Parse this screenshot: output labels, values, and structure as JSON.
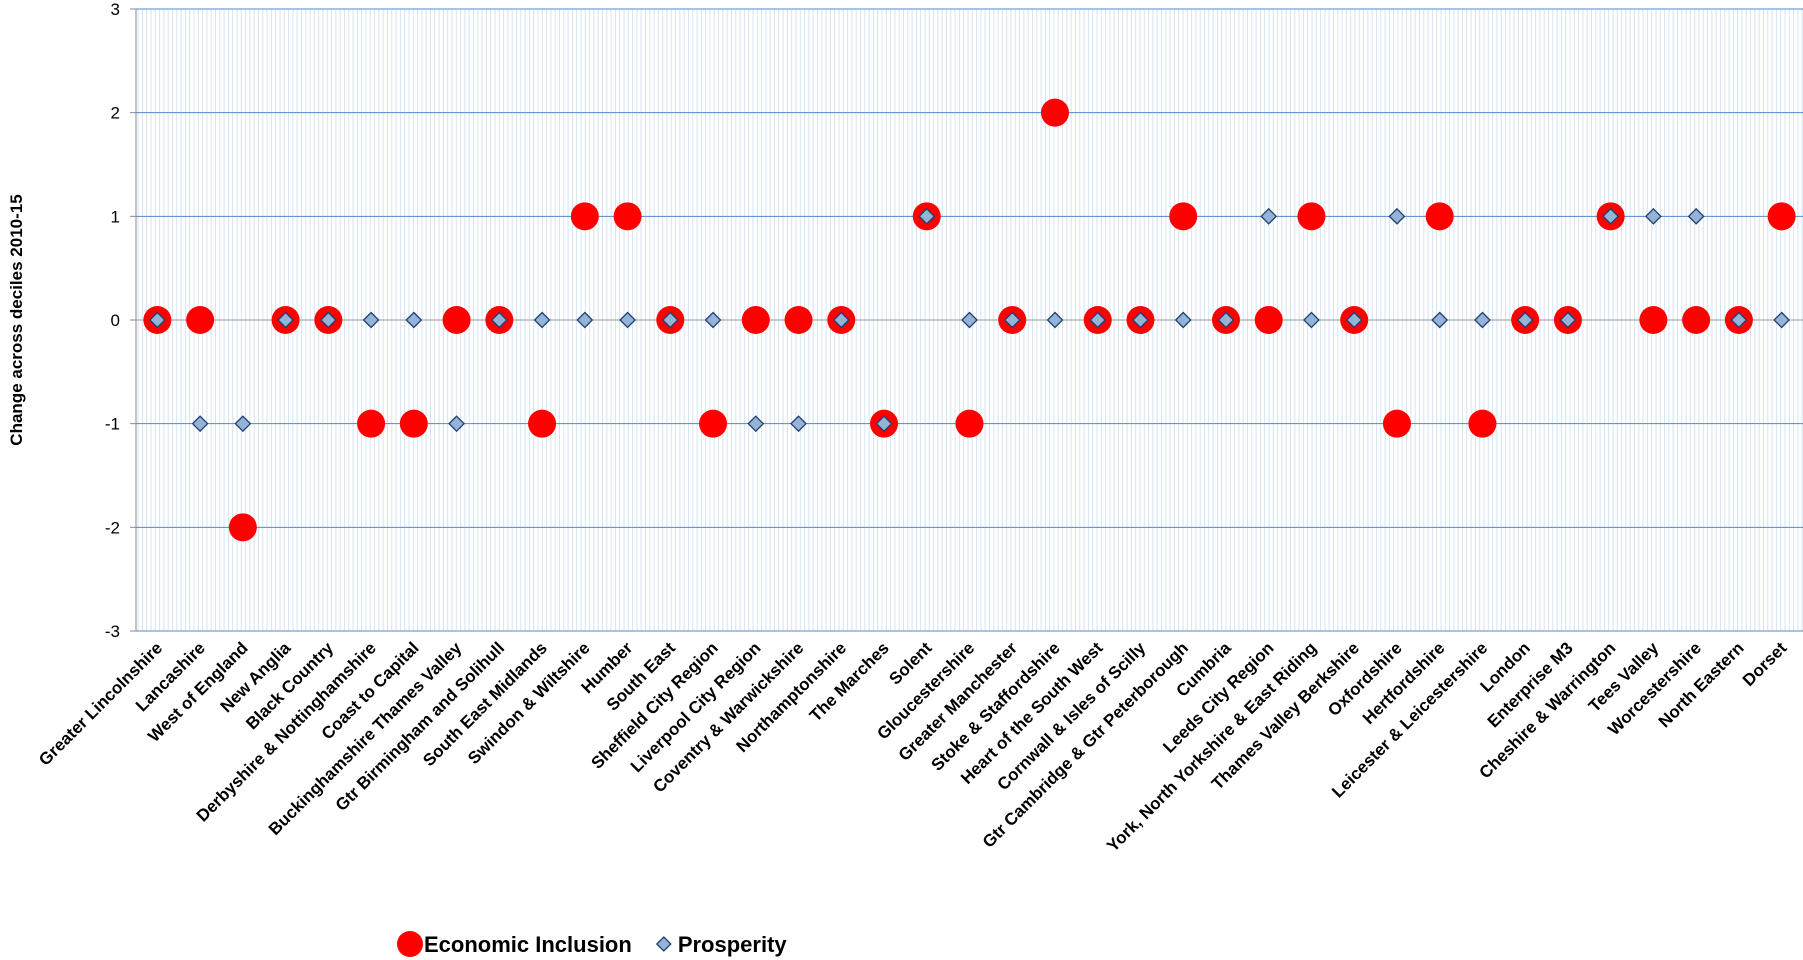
{
  "chart_data": {
    "type": "scatter",
    "y_label": "Change across deciles 2010-15",
    "categories": [
      "Greater Lincolnshire",
      "Lancashire",
      "West of England",
      "New Anglia",
      "Black Country",
      "Derbyshire & Nottinghamshire",
      "Coast to Capital",
      "Buckinghamshire Thames Valley",
      "Gtr Birmingham and Solihull",
      "South East Midlands",
      "Swindon & Wiltshire",
      "Humber",
      "South East",
      "Sheffield City Region",
      "Liverpool City Region",
      "Coventry & Warwickshire",
      "Northamptonshire",
      "The Marches",
      "Solent",
      "Gloucestershire",
      "Greater Manchester",
      "Stoke & Staffordshire",
      "Heart of the South West",
      "Cornwall & Isles of Scilly",
      "Gtr Cambridge & Gtr Peterborough",
      "Cumbria",
      "Leeds City Region",
      "York, North Yorkshire & East Riding",
      "Thames Valley Berkshire",
      "Oxfordshire",
      "Hertfordshire",
      "Leicester & Leicestershire",
      "London",
      "Enterprise M3",
      "Cheshire & Warrington",
      "Tees Valley",
      "Worcestershire",
      "North Eastern",
      "Dorset"
    ],
    "series": [
      {
        "name": "Economic Inclusion",
        "color": "#ff0000",
        "marker": "circle",
        "values": [
          0,
          0,
          -2,
          0,
          0,
          -1,
          -1,
          0,
          0,
          -1,
          1,
          1,
          0,
          -1,
          0,
          0,
          0,
          -1,
          1,
          -1,
          0,
          2,
          0,
          0,
          1,
          0,
          0,
          1,
          0,
          -1,
          1,
          -1,
          0,
          0,
          1,
          0,
          0,
          0,
          1
        ]
      },
      {
        "name": "Prosperity",
        "color": "#95b3d7",
        "marker": "diamond",
        "values": [
          0,
          -1,
          -1,
          0,
          0,
          0,
          0,
          -1,
          0,
          0,
          0,
          0,
          0,
          0,
          -1,
          -1,
          0,
          -1,
          1,
          0,
          0,
          0,
          0,
          0,
          0,
          0,
          1,
          0,
          0,
          1,
          0,
          0,
          0,
          0,
          1,
          1,
          1,
          0,
          0
        ]
      }
    ],
    "ylim": [
      -3,
      3
    ],
    "yticks": [
      -3,
      -2,
      -1,
      0,
      1,
      2,
      3
    ],
    "grid": true
  }
}
